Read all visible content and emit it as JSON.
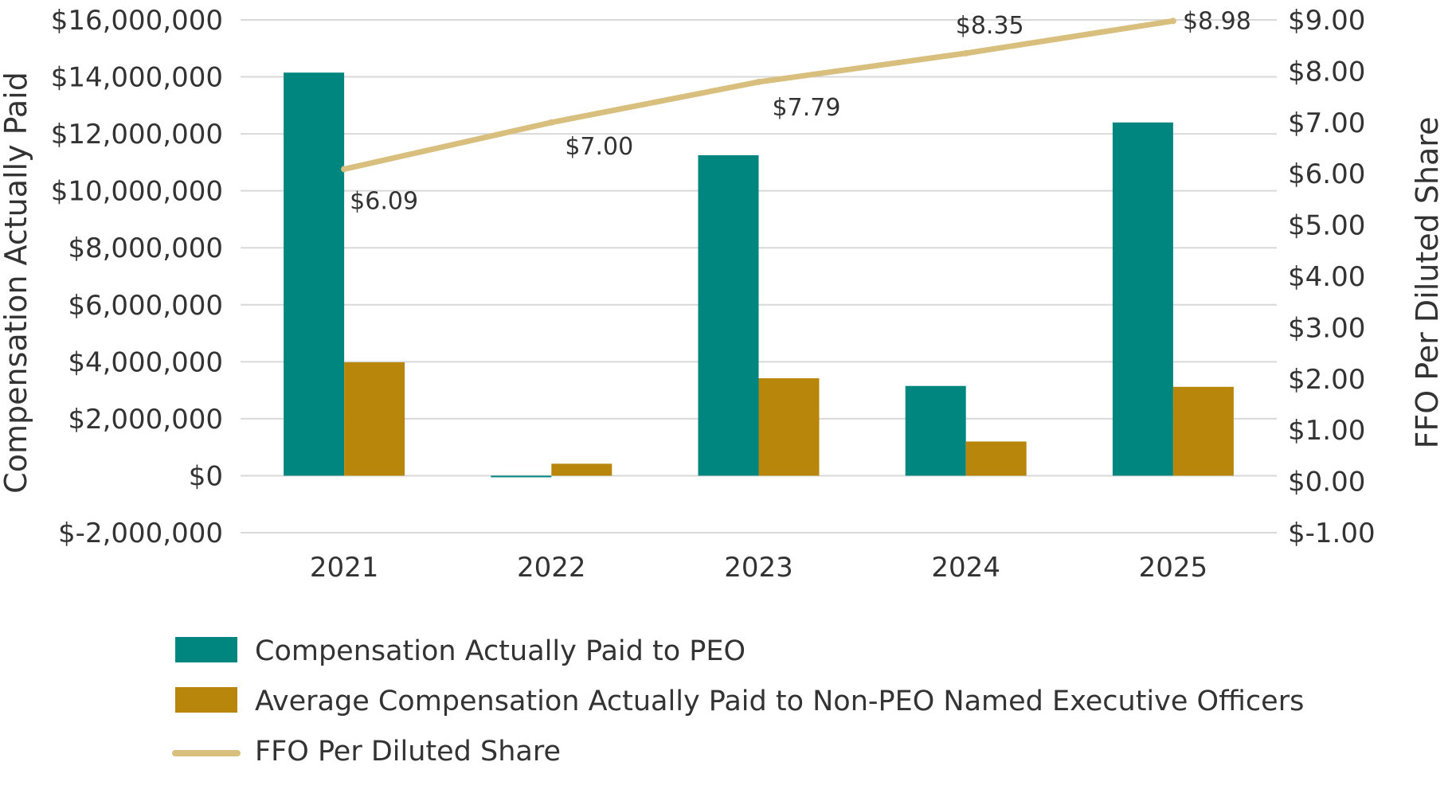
{
  "chart_data": {
    "type": "bar",
    "categories": [
      "2021",
      "2022",
      "2023",
      "2024",
      "2025"
    ],
    "series": [
      {
        "name": "Compensation Actually Paid to PEO",
        "kind": "bar",
        "axis": "left",
        "color": "#00857f",
        "values": [
          14150000,
          -50000,
          11250000,
          3150000,
          12400000
        ]
      },
      {
        "name": "Average Compensation Actually Paid to Non-PEO Named Executive Officers",
        "kind": "bar",
        "axis": "left",
        "color": "#b8860b",
        "values": [
          3980000,
          420000,
          3420000,
          1200000,
          3120000
        ]
      },
      {
        "name": "FFO Per Diluted Share",
        "kind": "line",
        "axis": "right",
        "color": "#d8bf7e",
        "values": [
          6.09,
          7.0,
          7.79,
          8.35,
          8.98
        ],
        "labels": [
          "$6.09",
          "$7.00",
          "$7.79",
          "$8.35",
          "$8.98"
        ]
      }
    ],
    "ylabel": "Compensation Actually Paid",
    "y2label": "FFO Per Diluted Share",
    "ylim": [
      -2000000,
      16000000
    ],
    "y2lim": [
      -1.0,
      9.0
    ],
    "yticks": [
      "$-2,000,000",
      "$0",
      "$2,000,000",
      "$4,000,000",
      "$6,000,000",
      "$8,000,000",
      "$10,000,000",
      "$12,000,000",
      "$14,000,000",
      "$16,000,000"
    ],
    "y2ticks": [
      "$-1.00",
      "$0.00",
      "$1.00",
      "$2.00",
      "$3.00",
      "$4.00",
      "$5.00",
      "$6.00",
      "$7.00",
      "$8.00",
      "$9.00"
    ],
    "grid": true,
    "legend_position": "bottom"
  }
}
